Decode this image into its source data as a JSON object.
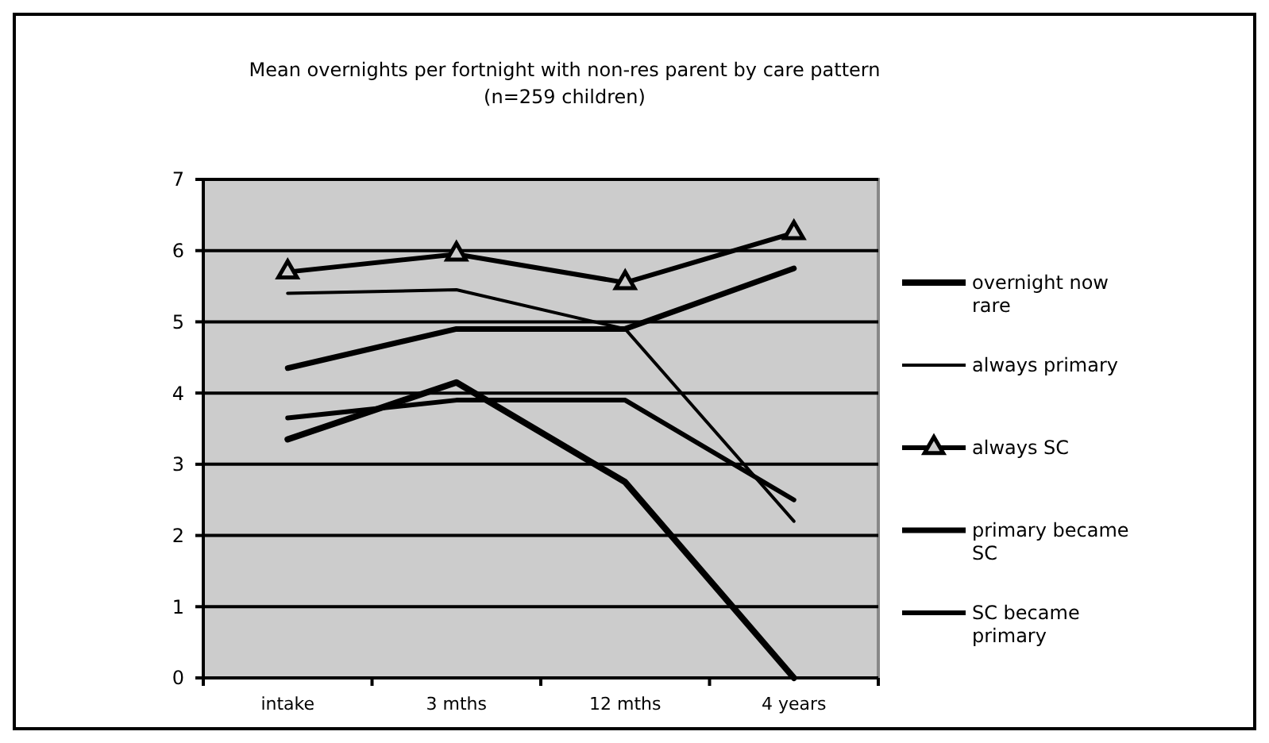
{
  "chart_data": {
    "type": "line",
    "title": "Mean overnights per fortnight with non-res parent by care pattern",
    "subtitle": "(n=259 children)",
    "categories": [
      "intake",
      "3 mths",
      "12 mths",
      "4 years"
    ],
    "series": [
      {
        "name": "overnight now rare",
        "color": "#000000",
        "values": [
          3.35,
          4.15,
          2.75,
          0
        ]
      },
      {
        "name": "always primary",
        "color": "#000000",
        "values": [
          5.4,
          5.45,
          4.9,
          2.2
        ]
      },
      {
        "name": "always SC",
        "color": "#000000",
        "values": [
          5.7,
          5.95,
          5.55,
          6.25
        ],
        "marker": "triangle"
      },
      {
        "name": "primary became SC",
        "color": "#000000",
        "values": [
          4.35,
          4.9,
          4.9,
          5.75
        ]
      },
      {
        "name": "SC became primary",
        "color": "#000000",
        "values": [
          3.65,
          3.9,
          3.9,
          2.5
        ]
      }
    ],
    "ylim": [
      0,
      7
    ],
    "yticks": [
      0,
      1,
      2,
      3,
      4,
      5,
      6,
      7
    ],
    "grid": "y",
    "legend": "right"
  }
}
